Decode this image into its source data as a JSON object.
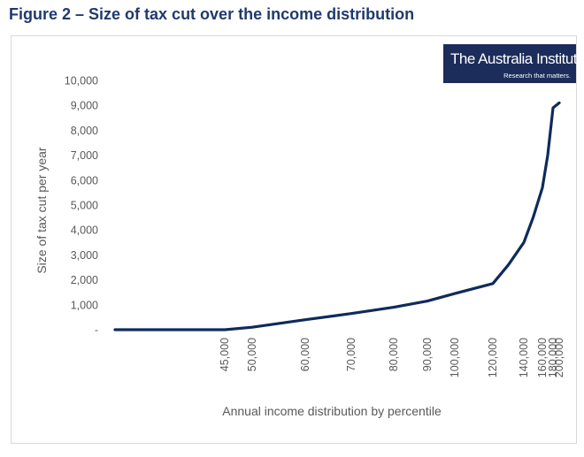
{
  "figure": {
    "title": "Figure 2 – Size of tax cut over the income distribution"
  },
  "logo": {
    "name": "The Australia Institute",
    "tagline": "Research that matters.",
    "bg_color": "#1c2d5b"
  },
  "chart_data": {
    "type": "line",
    "title": "",
    "xlabel": "Annual income distribution by percentile",
    "ylabel": "Size of tax cut per year",
    "ylim": [
      0,
      10000
    ],
    "y_ticks": [
      "-",
      "1,000",
      "2,000",
      "3,000",
      "4,000",
      "5,000",
      "6,000",
      "7,000",
      "8,000",
      "9,000",
      "10,000"
    ],
    "x_ticks": [
      {
        "label": "45,000",
        "value": 45000
      },
      {
        "label": "50,000",
        "value": 50000
      },
      {
        "label": "60,000",
        "value": 60000
      },
      {
        "label": "70,000",
        "value": 70000
      },
      {
        "label": "80,000",
        "value": 80000
      },
      {
        "label": "90,000",
        "value": 90000
      },
      {
        "label": "100,000",
        "value": 100000
      },
      {
        "label": "120,000",
        "value": 120000
      },
      {
        "label": "140,000",
        "value": 140000
      },
      {
        "label": "160,000",
        "value": 160000
      },
      {
        "label": "180,000",
        "value": 180000
      },
      {
        "label": "200,000",
        "value": 200000
      }
    ],
    "grid": false,
    "line_color": "#0f2a5c",
    "series": [
      {
        "points": [
          {
            "x": 0,
            "y": 0
          },
          {
            "x": 45000,
            "y": 0
          },
          {
            "x": 50000,
            "y": 100
          },
          {
            "x": 60000,
            "y": 400
          },
          {
            "x": 70000,
            "y": 650
          },
          {
            "x": 80000,
            "y": 900
          },
          {
            "x": 90000,
            "y": 1150
          },
          {
            "x": 100000,
            "y": 1450
          },
          {
            "x": 120000,
            "y": 1850
          },
          {
            "x": 130000,
            "y": 2600
          },
          {
            "x": 140000,
            "y": 3500
          },
          {
            "x": 150000,
            "y": 4500
          },
          {
            "x": 160000,
            "y": 5700
          },
          {
            "x": 170000,
            "y": 7000
          },
          {
            "x": 180000,
            "y": 8900
          },
          {
            "x": 200000,
            "y": 9100
          }
        ]
      }
    ]
  }
}
